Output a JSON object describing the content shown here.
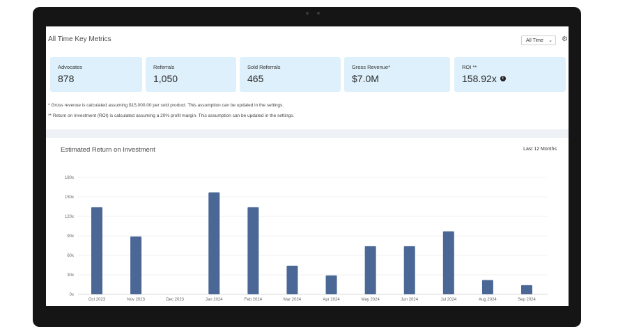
{
  "header": {
    "title": "All Time Key Metrics",
    "range_select": "All Time"
  },
  "icons": {
    "settings": "gear-icon",
    "info": "info-icon",
    "dropdown": "chevron-down-icon"
  },
  "metrics": [
    {
      "label": "Advocates",
      "value": "878"
    },
    {
      "label": "Referrals",
      "value": "1,050"
    },
    {
      "label": "Sold Referrals",
      "value": "465"
    },
    {
      "label": "Gross Revenue*",
      "value": "$7.0M"
    },
    {
      "label": "ROI **",
      "value": "158.92x"
    }
  ],
  "notes": {
    "gross": "* Gross revenue is calculated assuming $15,000.00 per sold product. This assumption can be updated in the settings.",
    "roi": "** Return on Investment (ROI) is calculated assuming a 20% profit margin. This assumption can be updated in the settings."
  },
  "chart": {
    "title": "Estimated Return on Investment",
    "range_label": "Last 12 Months"
  },
  "colors": {
    "card_bg": "#ddf0fb",
    "bar": "#4a6796",
    "band": "#eef1f5"
  },
  "chart_data": {
    "type": "bar",
    "title": "Estimated Return on Investment",
    "categories": [
      "Oct 2023",
      "Nov 2023",
      "Dec 2023",
      "Jan 2024",
      "Feb 2024",
      "Mar 2024",
      "Apr 2024",
      "May 2024",
      "Jun 2024",
      "Jul 2024",
      "Aug 2024",
      "Sep 2024"
    ],
    "values": [
      134,
      89,
      0,
      157,
      134,
      44,
      29,
      74,
      74,
      97,
      22,
      14
    ],
    "yticks": [
      "0x",
      "30x",
      "60x",
      "90x",
      "120x",
      "150x",
      "180x"
    ],
    "ylim": [
      0,
      180
    ],
    "grid": true,
    "legend": "none"
  }
}
